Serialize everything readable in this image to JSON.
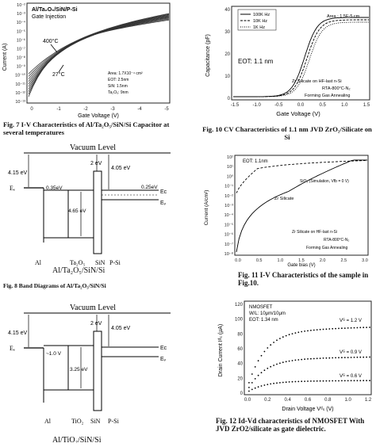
{
  "fig7": {
    "legend_lines": [
      "Al/Ta₂O₅/SiN/P-Si",
      "Gate Injection"
    ],
    "ylabel": "Current (A)",
    "xlabel": "Gate Voltage (V)",
    "yticks": [
      "10⁻²",
      "10⁻³",
      "10⁻⁴",
      "10⁻⁵",
      "10⁻⁶",
      "10⁻⁷",
      "10⁻⁸",
      "10⁻⁹",
      "10⁻¹⁰",
      "10⁻¹¹",
      "10⁻¹²",
      "10⁻¹³"
    ],
    "xticks": [
      "0",
      "-1",
      "-2",
      "-3",
      "-4",
      "-5"
    ],
    "temp_high": "400°C",
    "temp_low": "27°C",
    "params": [
      "Area: 1.7X10⁻⁴ cm²",
      "EOT: 2.5nm",
      "SiN: 1.5nm",
      "Ta₂O₅: 9nm"
    ],
    "caption": "Fig. 7  I-V Characteristics of Al/Ta₂O₅/SiN/Si Capacitor at several temperatures"
  },
  "fig8": {
    "title": "Vacuum Level",
    "barrier_left": "4.15 eV",
    "barrier_mid": "2 eV",
    "barrier_right": "4.05 eV",
    "ef_label": "Eₑ",
    "offset_left": "0.35eV",
    "offset_right": "0.25eV",
    "gap": "4.65 eV",
    "ec": "Eᴄ",
    "ev": "Eᵥ",
    "layers": [
      "Al",
      "Ta₂O₅",
      "SiN",
      "P-Si"
    ],
    "stack_label": "Al/Ta₂O₅/SiN/Si",
    "caption": "Fig. 8  Band Diagrams of Al/Ta₂O₅/SiN/Si"
  },
  "fig9": {
    "title": "Vacuum Level",
    "barrier_left": "4.15 eV",
    "barrier_mid": "2 eV",
    "barrier_right": "4.05 eV",
    "ef_label": "Eₑ",
    "offset_left": "~1.0 V",
    "gap": "3.25 eV",
    "ec": "Eᴄ",
    "ev": "Eᵥ",
    "layers": [
      "Al",
      "TiO₂",
      "SiN",
      "P-Si"
    ],
    "stack_label": "Al/TiO₂/SiN/Si"
  },
  "fig10": {
    "legend": [
      "100K Hz",
      "10K Hz",
      "1K Hz"
    ],
    "area": "Area : 1.5E-5 cm",
    "eot": "EOT: 1.1 nm",
    "notes": [
      "Zr Silicate on HF-last n-Si",
      "RTA-800°C-N₂",
      "Forming Gas Annealing"
    ],
    "ylabel": "Capacitance (pF)",
    "xlabel": "Gate Voltage (V)",
    "yticks": [
      "40",
      "30",
      "20",
      "10",
      "0"
    ],
    "xticks": [
      "-1.5",
      "-1.0",
      "-0.5",
      "0.0",
      "0.5",
      "1.0",
      "1.5"
    ],
    "caption": "Fig. 10  CV Characteristics of 1.1 nm JVD ZrO₂/Silicate on Si"
  },
  "fig11": {
    "eot": "EOT: 1.1nm",
    "sio2": "SiO₂ (Simulation, Vfb = 0 V)",
    "zr": "Zr Silicate",
    "notes": [
      "Zr Silicate on HF-last n-Si",
      "RTA-800°C-N₂",
      "Forming Gas Annealing"
    ],
    "ylabel": "Current (A/cm²)",
    "xlabel": "Gate bias (V)",
    "yticks": [
      "10²",
      "10¹",
      "10⁰",
      "10⁻¹",
      "10⁻²",
      "10⁻³",
      "10⁻⁴",
      "10⁻⁵",
      "10⁻⁶",
      "10⁻⁷",
      "10⁻⁸"
    ],
    "xticks": [
      "0.0",
      "0.5",
      "1.0",
      "1.5",
      "2.0",
      "2.5",
      "3.0"
    ],
    "caption": "Fig. 11  I-V Characteristics of the sample in Fig.10."
  },
  "fig12": {
    "legend": [
      "NMOSFET",
      "W/L: 10μm/10μm",
      "EOT: 1.34 nm"
    ],
    "curves": [
      "Vᴳ = 1.2 V",
      "Vᴳ = 0.9 V",
      "Vᴳ = 0.6 V"
    ],
    "ylabel": "Drain Current Iᵈₛ (μA)",
    "xlabel": "Drain Voltage Vᵈₛ (V)",
    "yticks": [
      "120",
      "100",
      "80",
      "60",
      "40",
      "20",
      "0"
    ],
    "xticks": [
      "0.0",
      "0.2",
      "0.4",
      "0.6",
      "0.8",
      "1.0",
      "1.2"
    ],
    "caption": "Fig. 12  Id-Vd characteristics of NMOSFET With JVD ZrO2/silicate as gate dielectric."
  }
}
